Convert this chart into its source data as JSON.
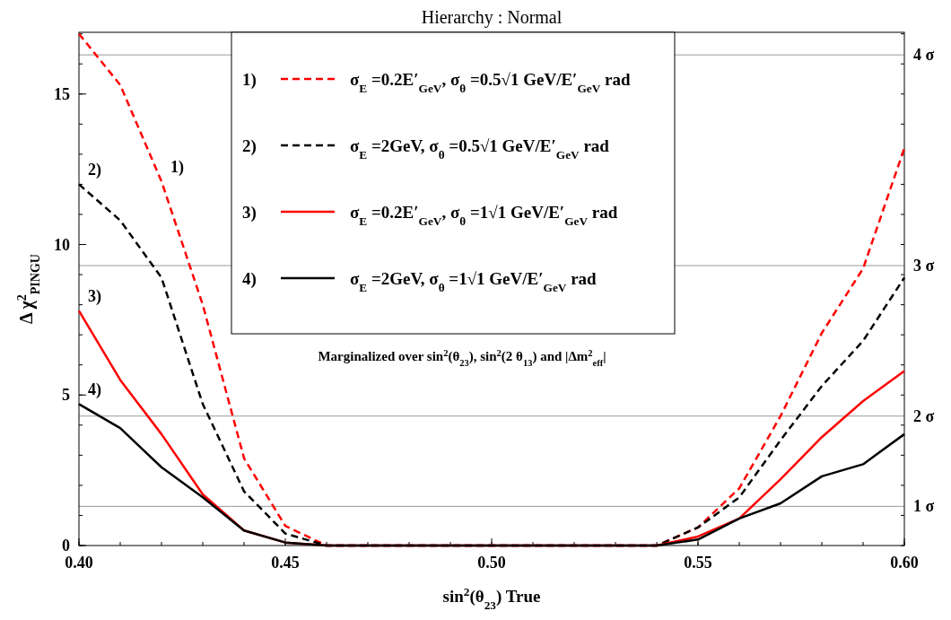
{
  "chart_data": {
    "type": "line",
    "title": "Hierarchy : Normal",
    "xlabel": "sin$^{2}$(θ$_{23}$) True",
    "ylabel": "Δ χ$^{2}$$_{PINGU}$",
    "x": [
      0.4,
      0.41,
      0.42,
      0.43,
      0.44,
      0.45,
      0.46,
      0.47,
      0.48,
      0.49,
      0.5,
      0.51,
      0.52,
      0.53,
      0.54,
      0.55,
      0.56,
      0.57,
      0.58,
      0.59,
      0.6
    ],
    "xlim": [
      0.4,
      0.6
    ],
    "xticks": [
      {
        "value": 0.4,
        "label": "0.40"
      },
      {
        "value": 0.45,
        "label": "0.45"
      },
      {
        "value": 0.5,
        "label": "0.50"
      },
      {
        "value": 0.55,
        "label": "0.55"
      },
      {
        "value": 0.6,
        "label": "0.60"
      }
    ],
    "ylim": [
      0,
      17.05
    ],
    "yticks": [
      0,
      5,
      10,
      15
    ],
    "legend": "top",
    "grid": false,
    "series": [
      {
        "name": "1) σ$_{E}$ =0.2E′$_{GeV}$, σ$_{θ}$ =0.5√1 GeV/E′$_{GeV}$ rad",
        "color": "#ff0000",
        "line_style": "dashed",
        "values": [
          17.0,
          15.3,
          12.1,
          8.0,
          2.9,
          0.65,
          0,
          0,
          0,
          0,
          0,
          0,
          0,
          0,
          0,
          0.6,
          1.9,
          4.3,
          7.06,
          9.2,
          13.2
        ]
      },
      {
        "name": "2) σ$_{E}$ =2GeV, σ$_{θ}$ =0.5√1 GeV/E′$_{GeV}$ rad",
        "color": "#000000",
        "line_style": "dashed",
        "values": [
          12.0,
          10.8,
          8.9,
          4.7,
          1.8,
          0.4,
          0,
          0,
          0,
          0,
          0,
          0,
          0,
          0,
          0,
          0.6,
          1.6,
          3.5,
          5.3,
          6.8,
          8.9
        ]
      },
      {
        "name": "3) σ$_{E}$ =0.2E′$_{GeV}$, σ$_{θ}$ =1√1 GeV/E′$_{GeV}$ rad",
        "color": "#ff0000",
        "line_style": "solid",
        "values": [
          7.8,
          5.5,
          3.7,
          1.7,
          0.5,
          0.1,
          0,
          0,
          0,
          0,
          0,
          0,
          0,
          0,
          0,
          0.3,
          0.9,
          2.2,
          3.6,
          4.8,
          5.8
        ]
      },
      {
        "name": "4) σ$_{E}$ =2GeV, σ$_{θ}$ =1√1 GeV/E′$_{GeV}$ rad",
        "color": "#000000",
        "line_style": "solid",
        "values": [
          4.7,
          3.9,
          2.6,
          1.6,
          0.5,
          0.1,
          0,
          0,
          0,
          0,
          0,
          0,
          0,
          0,
          0,
          0.2,
          0.9,
          1.4,
          2.3,
          2.7,
          3.7
        ]
      }
    ],
    "ref_lines": [
      {
        "axis": "y",
        "value": 1.3,
        "label": "1 σ",
        "color": "#999999"
      },
      {
        "axis": "y",
        "value": 4.3,
        "label": "2 σ",
        "color": "#999999"
      },
      {
        "axis": "y",
        "value": 9.3,
        "label": "3 σ",
        "color": "#999999"
      },
      {
        "axis": "y",
        "value": 16.3,
        "label": "4 σ",
        "color": "#999999"
      }
    ],
    "annotations": [
      "Marginalized over sin$^{2}$(θ$_{23}$),  sin$^{2}$(2 θ$_{13}$) and |Δm$^{2}$$_{eff}$|",
      "1)",
      "2)",
      "3)",
      "4)"
    ]
  }
}
